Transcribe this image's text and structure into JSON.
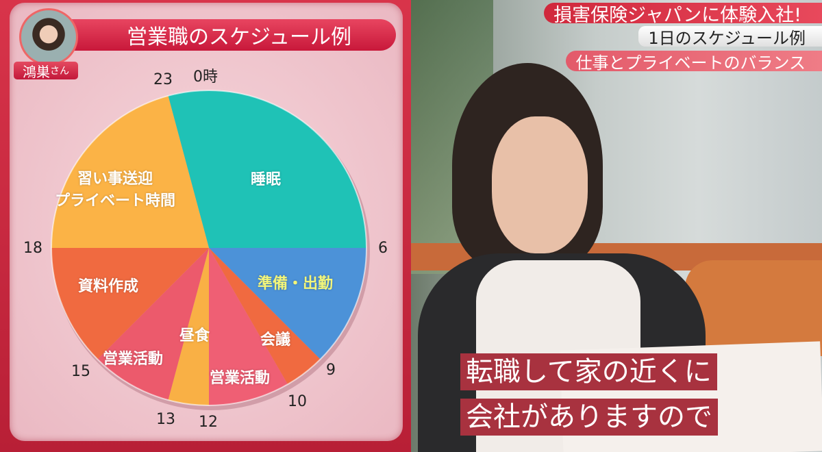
{
  "panel": {
    "title": "営業職のスケジュール例",
    "person_name": "鴻巣",
    "person_suffix": "さん"
  },
  "news": {
    "headline": "損害保険ジャパンに体験入社!",
    "segment": "1日のスケジュール例",
    "topic": "仕事とプライベートのバランス"
  },
  "subtitle": {
    "line1": "転職して家の近くに",
    "line2": "会社がありますので"
  },
  "chart_data": {
    "type": "pie",
    "title": "営業職のスケジュール例",
    "unit": "hour of day (24h clock, 0時 at top)",
    "hour_labels": [
      "0時",
      "6",
      "9",
      "10",
      "12",
      "13",
      "15",
      "18",
      "23"
    ],
    "slices": [
      {
        "label": "睡眠",
        "start": 23,
        "end": 6,
        "color": "#1fc2b6"
      },
      {
        "label": "準備・出勤",
        "start": 6,
        "end": 9,
        "color": "#4c92d8"
      },
      {
        "label": "会議",
        "start": 9,
        "end": 10,
        "color": "#f06a40"
      },
      {
        "label": "営業活動",
        "start": 10,
        "end": 12,
        "color": "#ef5f74"
      },
      {
        "label": "昼食",
        "start": 12,
        "end": 13,
        "color": "#f9b045"
      },
      {
        "label": "営業活動",
        "start": 13,
        "end": 15,
        "color": "#ec5a6c"
      },
      {
        "label": "資料作成",
        "start": 15,
        "end": 18,
        "color": "#f06a40"
      },
      {
        "label": "習い事送迎\nプライベート時間",
        "start": 18,
        "end": 23,
        "color": "#fbb346"
      }
    ]
  },
  "colors": {
    "brand_red": "#c8183a",
    "subtitle_bg": "#a8323f",
    "prep_label": "#f2f57a"
  }
}
